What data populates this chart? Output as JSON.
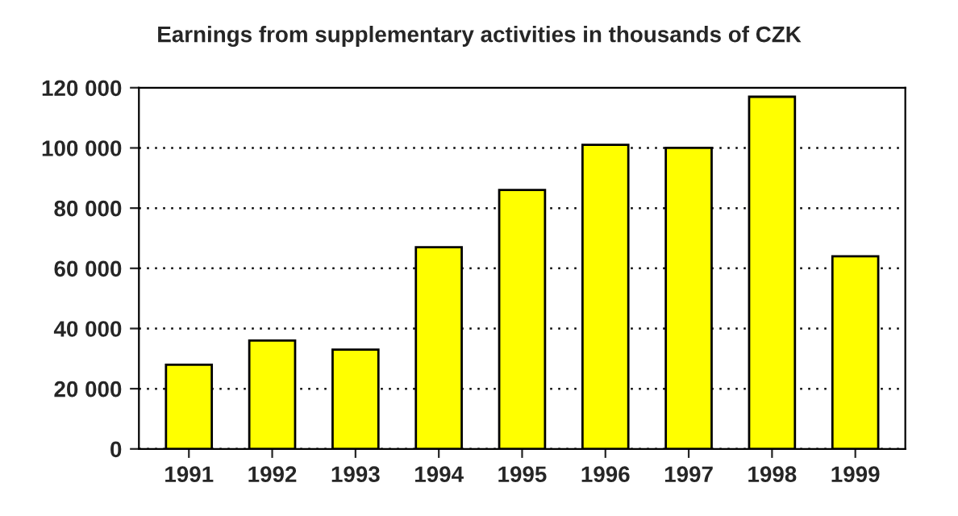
{
  "chart_data": {
    "type": "bar",
    "title": "Earnings from supplementary activities in thousands of CZK",
    "categories": [
      "1991",
      "1992",
      "1993",
      "1994",
      "1995",
      "1996",
      "1997",
      "1998",
      "1999"
    ],
    "values": [
      28000,
      36000,
      33000,
      67000,
      86000,
      101000,
      100000,
      117000,
      64000
    ],
    "color": "#ffff00",
    "ylim": [
      0,
      120000
    ],
    "yticks": [
      {
        "value": 0,
        "label": "0"
      },
      {
        "value": 20000,
        "label": "20 000"
      },
      {
        "value": 40000,
        "label": "40 000"
      },
      {
        "value": 60000,
        "label": "60 000"
      },
      {
        "value": 80000,
        "label": "80 000"
      },
      {
        "value": 100000,
        "label": "100 000"
      },
      {
        "value": 120000,
        "label": "120 000"
      }
    ],
    "grid": "y",
    "legend": false
  }
}
